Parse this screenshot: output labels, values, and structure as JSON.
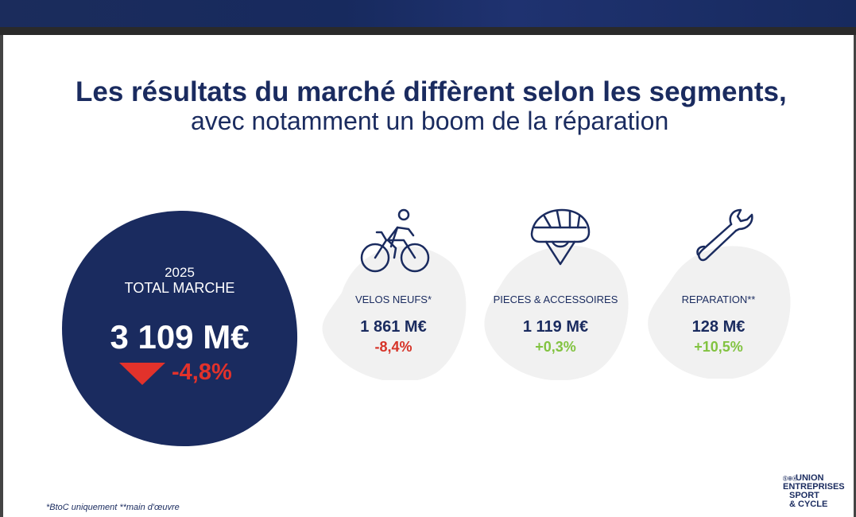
{
  "title": {
    "line1": "Les résultats du marché diffèrent selon les segments,",
    "line2": "avec notamment un boom de la réparation"
  },
  "total": {
    "year": "2025",
    "label": "TOTAL MARCHE",
    "value": "3 109 M€",
    "change": "-4,8%",
    "arrow_icon": "arrow-down-icon",
    "blob_color": "#1a2b5f",
    "change_color": "#e2322b"
  },
  "segments": [
    {
      "label": "VELOS NEUFS*",
      "value": "1 861 M€",
      "change": "-8,4%",
      "icon": "bicycle-icon",
      "trend": "negative"
    },
    {
      "label": "PIECES & ACCESSOIRES",
      "value": "1 119 M€",
      "change": "+0,3%",
      "icon": "helmet-icon",
      "trend": "positive"
    },
    {
      "label": "REPARATION**",
      "value": "128 M€",
      "change": "+10,5%",
      "icon": "wrench-icon",
      "trend": "positive"
    }
  ],
  "colors": {
    "navy": "#1a2b5f",
    "negative": "#d63328",
    "positive": "#82c341",
    "segment_bg": "#f1f1f1"
  },
  "footnote": "*BtoC uniquement **main d'œuvre",
  "logo": {
    "prefix": "Ⓢ⊕ⓔ",
    "line1": "UNION",
    "line2": "ENTREPRISES",
    "line3": "SPORT",
    "line4": "& CYCLE"
  }
}
